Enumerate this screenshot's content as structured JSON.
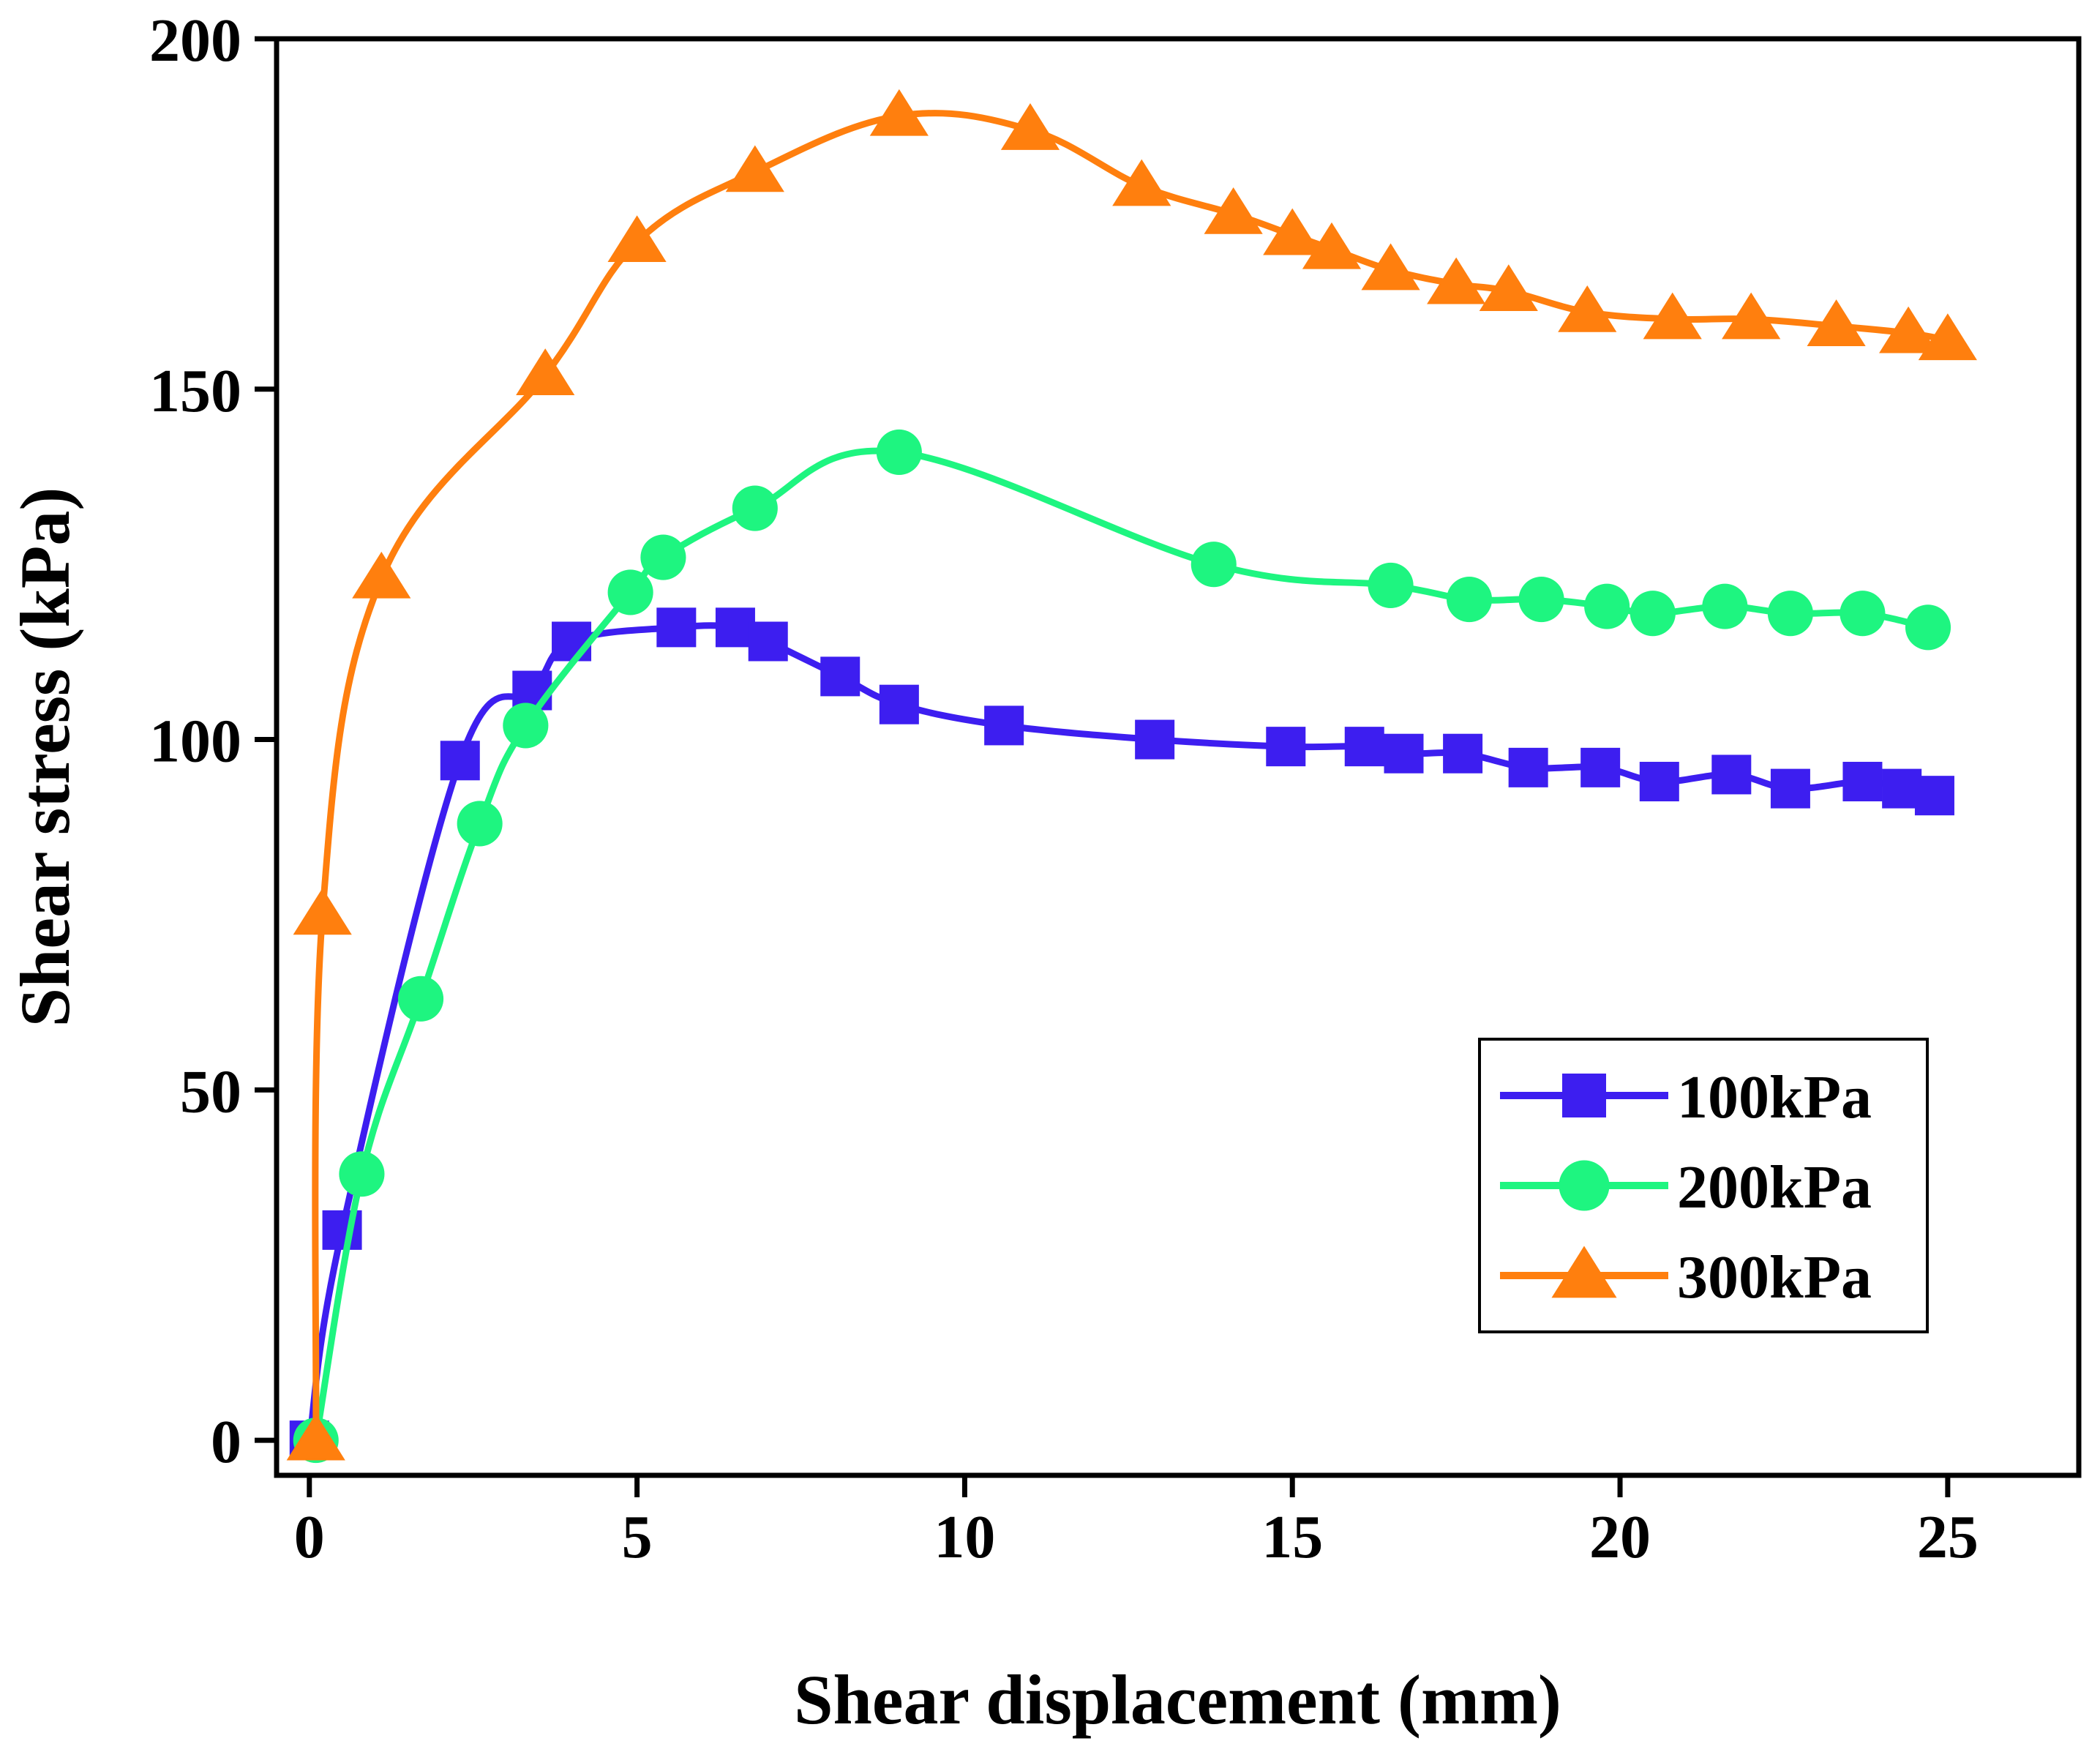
{
  "chart_data": {
    "type": "line",
    "xlabel": "Shear displacement (mm)",
    "ylabel": "Shear stress (kPa)",
    "xlim": [
      -0.5,
      27.0
    ],
    "ylim": [
      -5,
      200
    ],
    "xticks": [
      0,
      5,
      10,
      15,
      20,
      25
    ],
    "yticks": [
      0,
      50,
      100,
      150,
      200
    ],
    "xtick_labels": [
      "0",
      "5",
      "10",
      "15",
      "20",
      "25"
    ],
    "ytick_labels": [
      "0",
      "50",
      "100",
      "150",
      "200"
    ],
    "grid": false,
    "legend_position": "lower-right",
    "series": [
      {
        "name": "100kPa",
        "color": "#3d1ef0",
        "marker": "square",
        "x": [
          0.0,
          0.5,
          2.3,
          3.4,
          4.0,
          5.6,
          6.5,
          7.0,
          8.1,
          9.0,
          10.6,
          12.9,
          14.9,
          16.1,
          16.7,
          17.6,
          18.6,
          19.7,
          20.6,
          21.7,
          22.6,
          23.7,
          24.3,
          24.8
        ],
        "y": [
          0,
          30,
          97,
          107,
          114,
          116,
          116,
          114,
          109,
          105,
          102,
          100,
          99,
          99,
          98,
          98,
          96,
          96,
          94,
          95,
          93,
          94,
          93,
          92
        ]
      },
      {
        "name": "200kPa",
        "color": "#1ef580",
        "marker": "circle",
        "x": [
          0.1,
          0.8,
          1.7,
          2.6,
          3.3,
          4.9,
          5.4,
          6.8,
          9.0,
          13.8,
          16.5,
          17.7,
          18.8,
          19.8,
          20.5,
          21.6,
          22.6,
          23.7,
          24.7
        ],
        "y": [
          0,
          38,
          63,
          88,
          102,
          121,
          126,
          133,
          141,
          125,
          122,
          120,
          120,
          119,
          118,
          119,
          118,
          118,
          116
        ]
      },
      {
        "name": "300kPa",
        "color": "#ff7f0e",
        "marker": "triangle",
        "x": [
          0.1,
          0.2,
          1.1,
          3.6,
          5.0,
          6.8,
          9.0,
          11.0,
          12.7,
          14.1,
          15.0,
          15.6,
          16.5,
          17.5,
          18.3,
          19.5,
          20.8,
          22.0,
          23.3,
          24.4,
          25.0
        ],
        "y": [
          0,
          75,
          123,
          152,
          171,
          181,
          189,
          187,
          179,
          175,
          172,
          170,
          167,
          165,
          164,
          161,
          160,
          160,
          159,
          158,
          157
        ]
      }
    ]
  }
}
